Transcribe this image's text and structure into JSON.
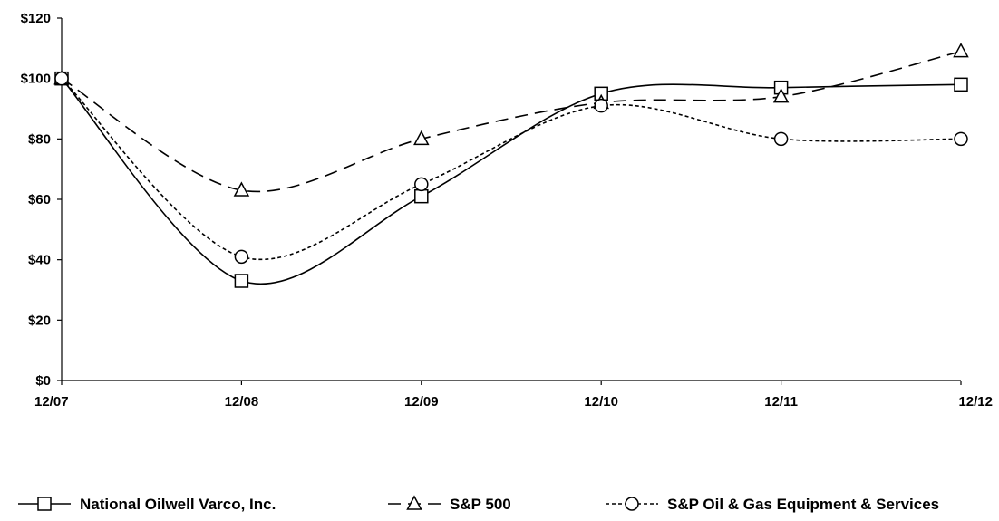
{
  "chart_data": {
    "type": "line",
    "title": "",
    "xlabel": "",
    "ylabel": "",
    "categories": [
      "12/07",
      "12/08",
      "12/09",
      "12/10",
      "12/11",
      "12/12"
    ],
    "ylim": [
      0,
      120
    ],
    "y_ticks": [
      "$0",
      "$20",
      "$40",
      "$60",
      "$80",
      "$100",
      "$120"
    ],
    "grid": false,
    "legend_position": "bottom",
    "series": [
      {
        "name": "National Oilwell Varco, Inc.",
        "values": [
          100,
          33,
          61,
          95,
          97,
          98
        ],
        "marker": "square",
        "dash": "solid",
        "color": "#000000"
      },
      {
        "name": "S&P 500",
        "values": [
          100,
          63,
          80,
          92,
          94,
          109
        ],
        "marker": "triangle",
        "dash": "dashed",
        "color": "#000000"
      },
      {
        "name": "S&P Oil & Gas Equipment & Services",
        "values": [
          100,
          41,
          65,
          91,
          80,
          80
        ],
        "marker": "circle",
        "dash": "dotted",
        "color": "#000000"
      }
    ]
  }
}
